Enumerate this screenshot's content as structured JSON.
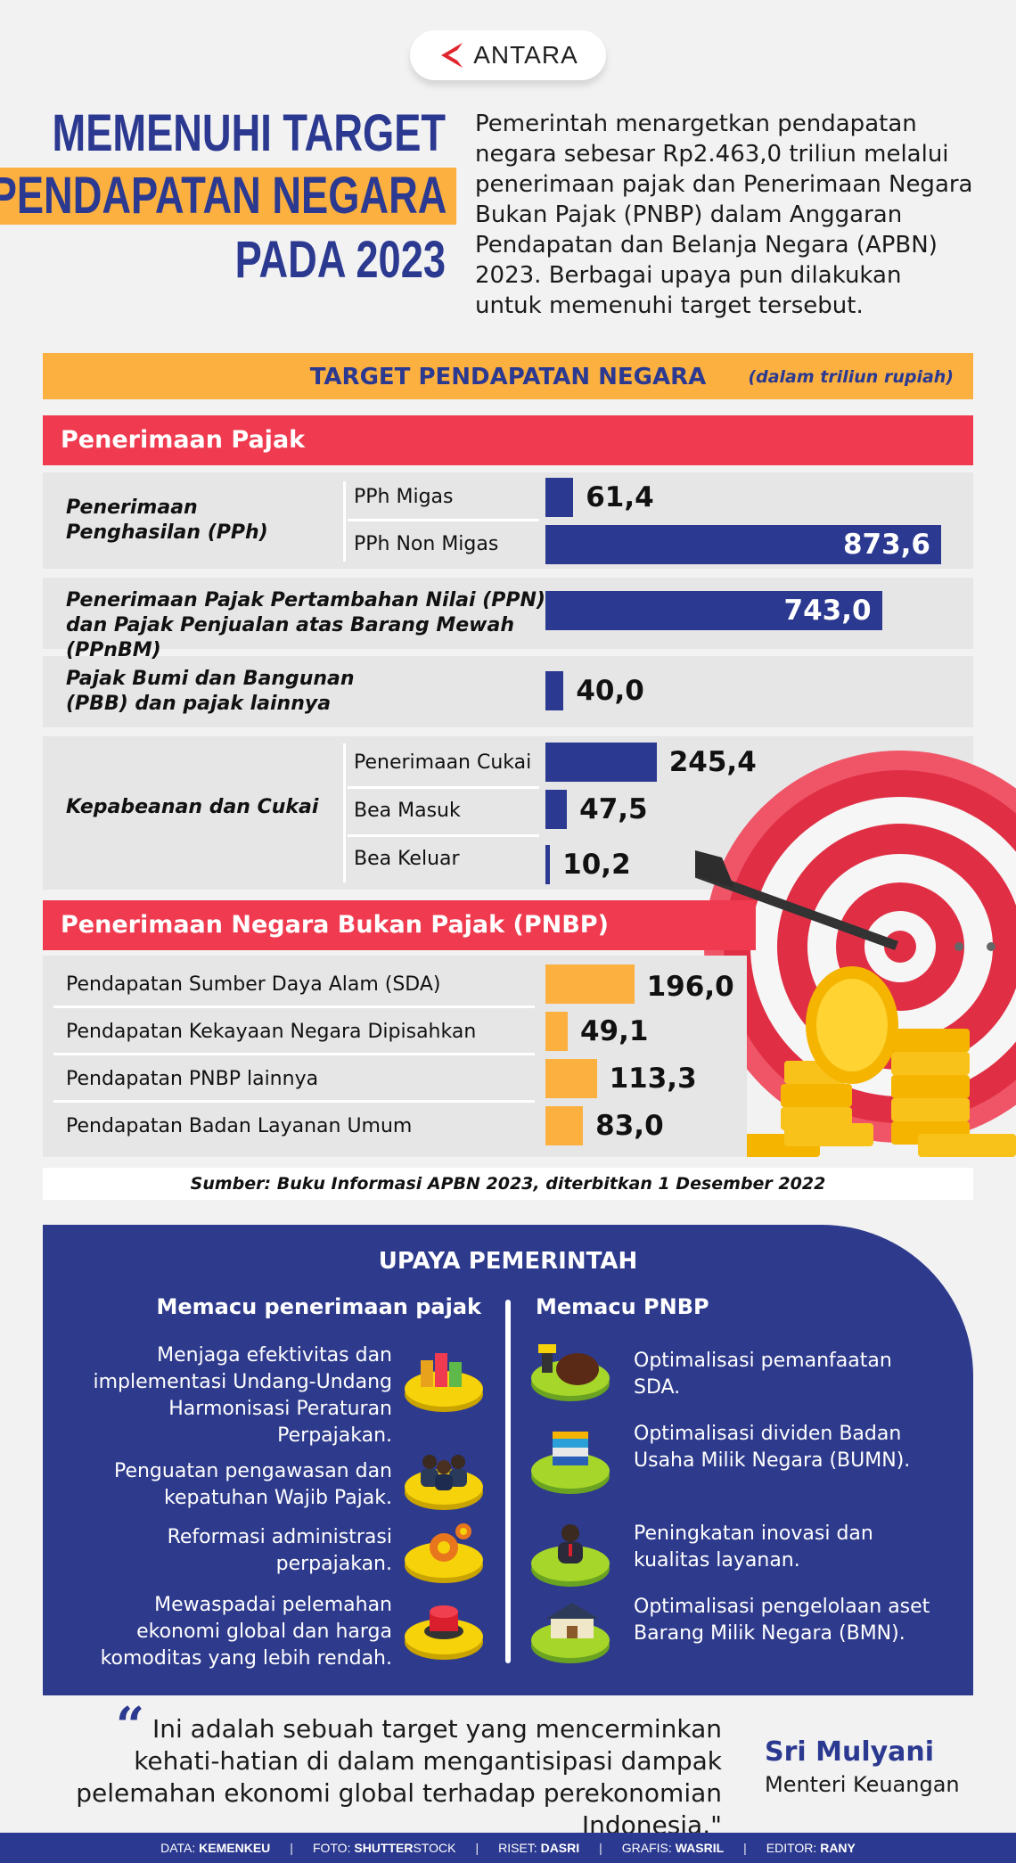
{
  "logo": {
    "text": "ANTARA"
  },
  "title": {
    "line1": "MEMENUHI TARGET",
    "line2": "PENDAPATAN NEGARA",
    "line3": "PADA 2023"
  },
  "intro": "Pemerintah menargetkan pendapatan negara sebesar Rp2.463,0 triliun melalui penerimaan pajak dan Penerimaan Negara Bukan Pajak (PNBP) dalam Anggaran Pendapatan dan Belanja Negara (APBN) 2023. Berbagai upaya pun dilakukan untuk memenuhi target tersebut.",
  "chart_data": {
    "type": "bar",
    "title": "TARGET PENDAPATAN NEGARA",
    "unit_note": "(dalam triliun rupiah)",
    "orientation": "horizontal",
    "xlim": [
      0,
      873.6
    ],
    "sections": [
      {
        "name": "Penerimaan Pajak",
        "groups": [
          {
            "category": "Penerimaan Penghasilan (PPh)",
            "items": [
              {
                "label": "PPh Migas",
                "value": 61.4,
                "display": "61,4"
              },
              {
                "label": "PPh Non Migas",
                "value": 873.6,
                "display": "873,6"
              }
            ]
          },
          {
            "category": "Penerimaan Pajak Pertambahan Nilai (PPN) dan Pajak Penjualan atas Barang Mewah (PPnBM)",
            "items": [
              {
                "label": "",
                "value": 743.0,
                "display": "743,0"
              }
            ]
          },
          {
            "category": "Pajak Bumi dan Bangunan (PBB) dan pajak lainnya",
            "items": [
              {
                "label": "",
                "value": 40.0,
                "display": "40,0"
              }
            ]
          },
          {
            "category": "Kepabeanan dan Cukai",
            "items": [
              {
                "label": "Penerimaan Cukai",
                "value": 245.4,
                "display": "245,4"
              },
              {
                "label": "Bea Masuk",
                "value": 47.5,
                "display": "47,5"
              },
              {
                "label": "Bea Keluar",
                "value": 10.2,
                "display": "10,2"
              }
            ]
          }
        ]
      },
      {
        "name": "Penerimaan Negara Bukan Pajak (PNBP)",
        "groups": [
          {
            "category": "",
            "items": [
              {
                "label": "Pendapatan Sumber Daya Alam (SDA)",
                "value": 196.0,
                "display": "196,0"
              },
              {
                "label": "Pendapatan Kekayaan Negara Dipisahkan",
                "value": 49.1,
                "display": "49,1"
              },
              {
                "label": "Pendapatan PNBP lainnya",
                "value": 113.3,
                "display": "113,3"
              },
              {
                "label": "Pendapatan Badan Layanan Umum",
                "value": 83.0,
                "display": "83,0"
              }
            ]
          }
        ]
      }
    ],
    "colors": {
      "pajak": "#2b3990",
      "pnbp": "#fbb040"
    }
  },
  "source": "Sumber: Buku Informasi APBN 2023, diterbitkan 1 Desember 2022",
  "upaya": {
    "title": "UPAYA PEMERINTAH",
    "left_title": "Memacu penerimaan pajak",
    "right_title": "Memacu PNBP",
    "left_items": [
      "Menjaga efektivitas dan implementasi Undang-Undang Harmonisasi Peraturan Perpajakan.",
      "Penguatan pengawasan dan kepatuhan Wajib Pajak.",
      "Reformasi administrasi perpajakan.",
      "Mewaspadai pelemahan ekonomi global dan harga komoditas yang lebih rendah."
    ],
    "right_items": [
      "Optimalisasi pemanfaatan SDA.",
      "Optimalisasi dividen Badan Usaha Milik Negara (BUMN).",
      "Peningkatan inovasi dan kualitas layanan.",
      "Optimalisasi pengelolaan aset Barang Milik Negara (BMN)."
    ]
  },
  "quote": {
    "text": "Ini adalah sebuah target yang mencerminkan kehati-hatian di dalam mengantisipasi dampak pelemahan ekonomi global terhadap perekonomian Indonesia.\"",
    "speaker": "Sri Mulyani",
    "role": "Menteri Keuangan"
  },
  "footer": {
    "data_label": "DATA:",
    "data_value": "KEMENKEU",
    "foto_label": "FOTO:",
    "foto_value_bold": "SHUTTER",
    "foto_value_rest": "STOCK",
    "riset_label": "RISET:",
    "riset_value": "DASRI",
    "grafis_label": "GRAFIS:",
    "grafis_value": "WASRIL",
    "editor_label": "EDITOR:",
    "editor_value": "RANY"
  },
  "colors": {
    "navy": "#2b3990",
    "orange": "#fbb040",
    "red": "#ef3a4f",
    "panel": "#2e3a8c"
  }
}
